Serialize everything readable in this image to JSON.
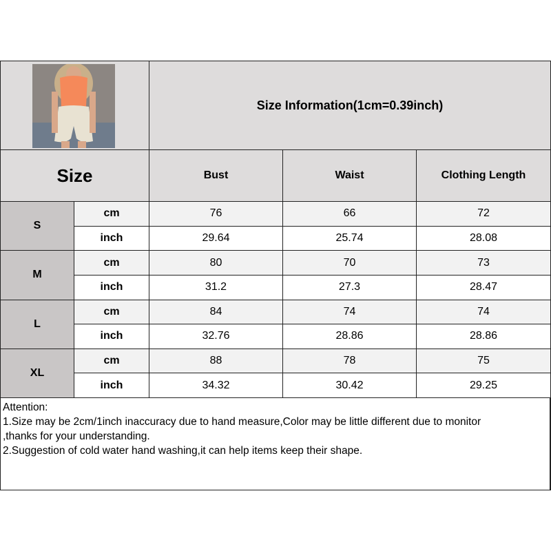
{
  "title": "Size Information(1cm=0.39inch)",
  "size_header": "Size",
  "columns": [
    "Bust",
    "Waist",
    "Clothing Length"
  ],
  "rows": [
    {
      "size": "S",
      "cm_label": "cm",
      "inch_label": "inch",
      "cm": [
        "76",
        "66",
        "72"
      ],
      "inch": [
        "29.64",
        "25.74",
        "28.08"
      ]
    },
    {
      "size": "M",
      "cm_label": "cm",
      "inch_label": "inch",
      "cm": [
        "80",
        "70",
        "73"
      ],
      "inch": [
        "31.2",
        "27.3",
        "28.47"
      ]
    },
    {
      "size": "L",
      "cm_label": "cm",
      "inch_label": "inch",
      "cm": [
        "84",
        "74",
        "74"
      ],
      "inch": [
        "32.76",
        "28.86",
        "28.86"
      ]
    },
    {
      "size": "XL",
      "cm_label": "cm",
      "inch_label": "inch",
      "cm": [
        "88",
        "78",
        "75"
      ],
      "inch": [
        "34.32",
        "30.42",
        "29.25"
      ]
    }
  ],
  "attention": [
    "Attention:",
    "1.Size may be 2cm/1inch inaccuracy due to hand measure,Color may be little different due to monitor",
    ",thanks for your understanding.",
    "2.Suggestion of cold water hand washing,it can help items keep their shape."
  ],
  "colors": {
    "header_bg": "#dedcdc",
    "size_bg": "#c9c6c6",
    "cm_row_bg": "#f2f2f2",
    "top_color": "#f5895a",
    "shorts_color": "#e8e2d2"
  }
}
